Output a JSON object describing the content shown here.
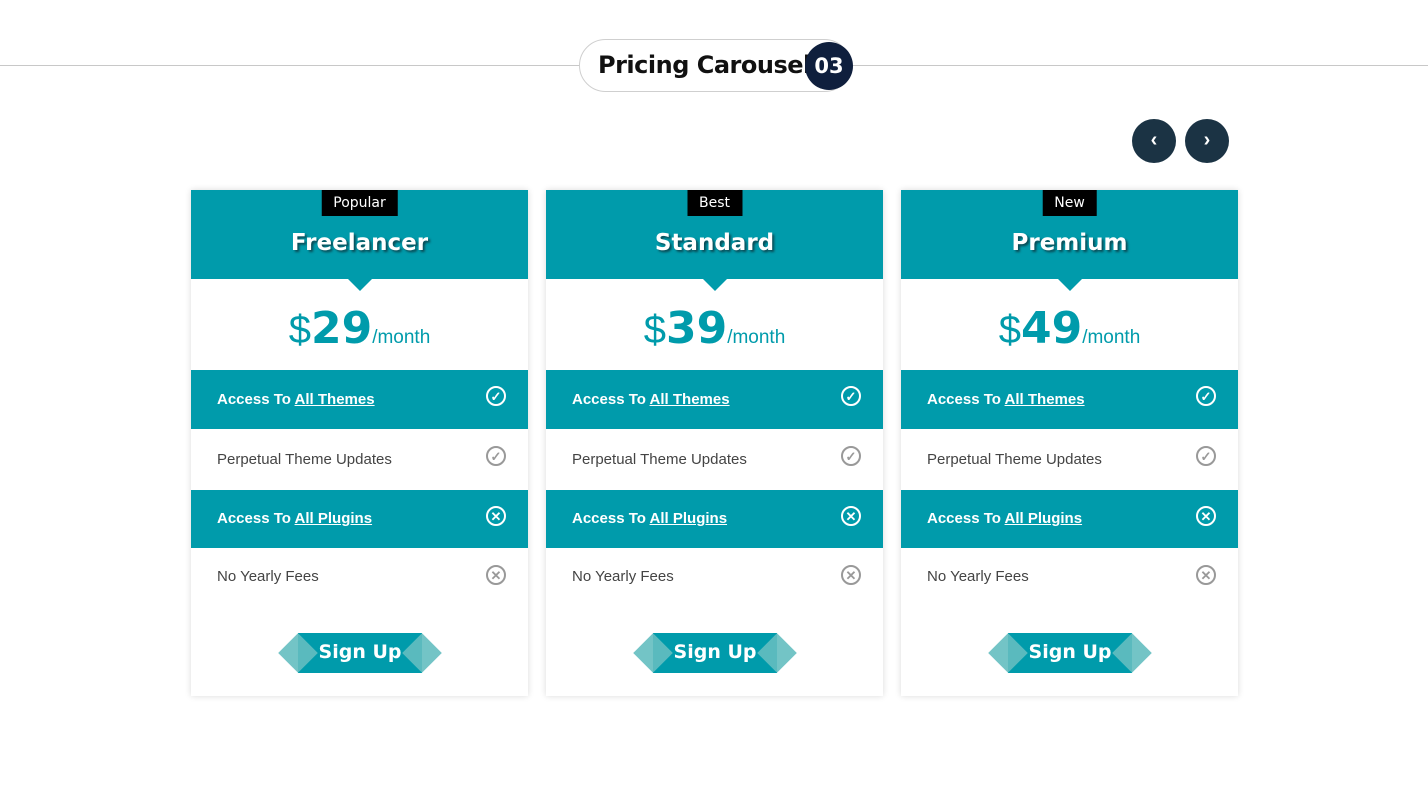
{
  "header": {
    "title": "Pricing Carousel",
    "number": "03"
  },
  "nav": {
    "prev": "‹",
    "next": "›"
  },
  "plans": [
    {
      "badge": "Popular",
      "name": "Freelancer",
      "currency": "$",
      "price": "29",
      "period": "/month",
      "features": [
        {
          "prefix": "Access To ",
          "link": "All Themes",
          "included": true
        },
        {
          "prefix": "Perpetual Theme Updates",
          "link": "",
          "included": true
        },
        {
          "prefix": "Access To ",
          "link": "All Plugins",
          "included": false
        },
        {
          "prefix": "No Yearly Fees",
          "link": "",
          "included": false
        }
      ],
      "button": "Sign Up"
    },
    {
      "badge": "Best",
      "name": "Standard",
      "currency": "$",
      "price": "39",
      "period": "/month",
      "features": [
        {
          "prefix": "Access To ",
          "link": "All Themes",
          "included": true
        },
        {
          "prefix": "Perpetual Theme Updates",
          "link": "",
          "included": true
        },
        {
          "prefix": "Access To ",
          "link": "All Plugins",
          "included": false
        },
        {
          "prefix": "No Yearly Fees",
          "link": "",
          "included": false
        }
      ],
      "button": "Sign Up"
    },
    {
      "badge": "New",
      "name": "Premium",
      "currency": "$",
      "price": "49",
      "period": "/month",
      "features": [
        {
          "prefix": "Access To ",
          "link": "All Themes",
          "included": true
        },
        {
          "prefix": "Perpetual Theme Updates",
          "link": "",
          "included": true
        },
        {
          "prefix": "Access To ",
          "link": "All Plugins",
          "included": false
        },
        {
          "prefix": "No Yearly Fees",
          "link": "",
          "included": false
        }
      ],
      "button": "Sign Up"
    }
  ],
  "colors": {
    "accent": "#009bab",
    "dark": "#0f1f3d",
    "nav": "#1b3344"
  }
}
